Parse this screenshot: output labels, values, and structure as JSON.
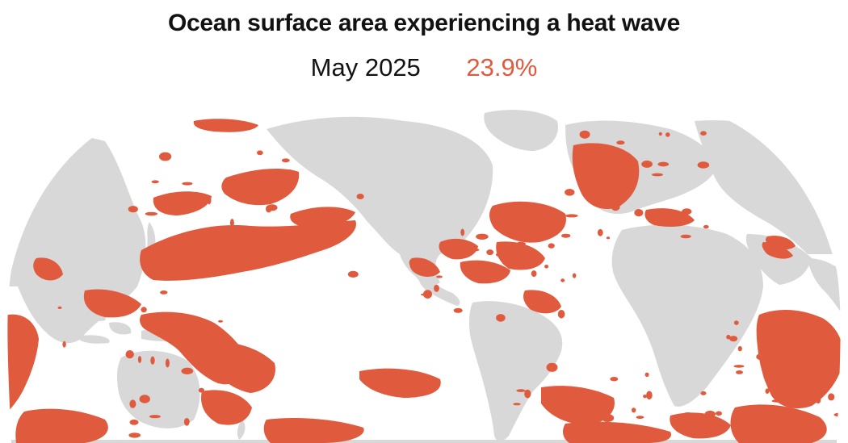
{
  "title": "Ocean surface area experiencing a heat wave",
  "period": "May 2025",
  "percentage": "23.9%",
  "colors": {
    "heatwave": "#e05a3d",
    "land": "#d8d8d8",
    "ocean": "#ffffff",
    "text": "#121212"
  },
  "map": {
    "projection": "rounded world map, Pacific-centered",
    "highlighted_ocean_regions": [
      "North Pacific",
      "Western Pacific / Philippine Sea",
      "Coral Sea / Southwest Pacific",
      "South Indian Ocean",
      "Gulf of Mexico / Caribbean",
      "North Atlantic",
      "Barents / Norwegian Sea",
      "Mediterranean",
      "Southern Ocean"
    ]
  }
}
